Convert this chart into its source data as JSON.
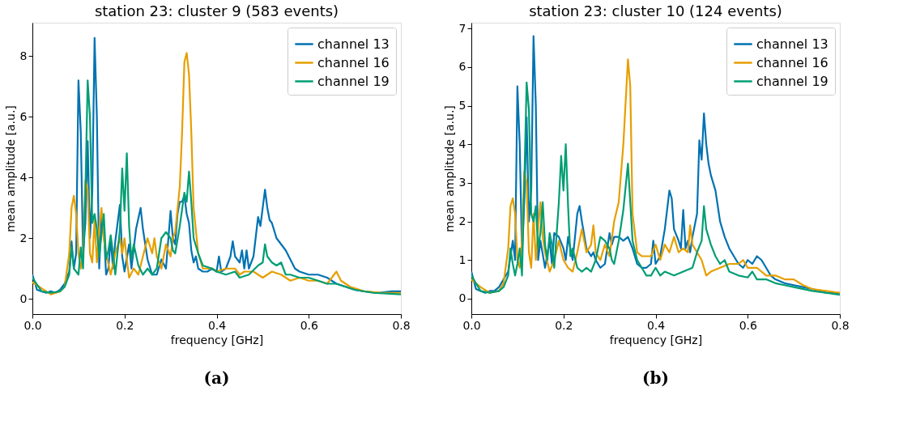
{
  "chart_data": [
    {
      "type": "line",
      "title": "station 23: cluster 9 (583 events)",
      "xlabel": "frequency [GHz]",
      "ylabel": "mean amplitude [a.u.]",
      "annotations": [
        "(a)"
      ],
      "xlim": [
        0,
        0.8
      ],
      "ylim": [
        -0.5,
        9.1
      ],
      "xticks": [
        {
          "value": 0,
          "label": "0.0"
        },
        0.2,
        0.4,
        0.6,
        0.8
      ],
      "yticks": [
        0,
        2,
        4,
        6,
        8
      ],
      "grid": false,
      "legend": "top right",
      "marker": "none",
      "line_style": "solid",
      "series": [
        {
          "name": "channel 13",
          "color": "#0072b2",
          "x": [
            0,
            0.01,
            0.02,
            0.03,
            0.04,
            0.05,
            0.06,
            0.07,
            0.08,
            0.085,
            0.09,
            0.095,
            0.1,
            0.105,
            0.11,
            0.115,
            0.12,
            0.125,
            0.13,
            0.135,
            0.14,
            0.145,
            0.15,
            0.155,
            0.16,
            0.165,
            0.17,
            0.175,
            0.18,
            0.19,
            0.195,
            0.2,
            0.21,
            0.215,
            0.225,
            0.235,
            0.24,
            0.25,
            0.26,
            0.27,
            0.28,
            0.29,
            0.3,
            0.305,
            0.31,
            0.315,
            0.32,
            0.325,
            0.33,
            0.335,
            0.34,
            0.345,
            0.35,
            0.355,
            0.36,
            0.37,
            0.38,
            0.39,
            0.4,
            0.405,
            0.41,
            0.42,
            0.43,
            0.435,
            0.44,
            0.45,
            0.455,
            0.46,
            0.465,
            0.47,
            0.48,
            0.49,
            0.495,
            0.5,
            0.505,
            0.51,
            0.515,
            0.52,
            0.53,
            0.54,
            0.55,
            0.56,
            0.57,
            0.58,
            0.6,
            0.62,
            0.64,
            0.66,
            0.68,
            0.7,
            0.72,
            0.75,
            0.78,
            0.8
          ],
          "values": [
            0.8,
            0.3,
            0.25,
            0.2,
            0.25,
            0.2,
            0.3,
            0.5,
            0.9,
            1.9,
            1.0,
            1.5,
            7.2,
            5.5,
            1.5,
            2.5,
            5.2,
            2.0,
            3.5,
            8.6,
            6.0,
            1.0,
            2.7,
            2.3,
            0.8,
            1.0,
            2.0,
            1.0,
            1.9,
            3.1,
            1.4,
            0.9,
            1.8,
            1.0,
            2.3,
            3.0,
            2.3,
            1.3,
            0.8,
            0.8,
            1.3,
            1.0,
            2.9,
            2.0,
            1.8,
            2.8,
            3.2,
            3.2,
            3.4,
            2.8,
            2.5,
            1.6,
            1.2,
            1.4,
            1.0,
            0.9,
            0.9,
            1.0,
            0.9,
            1.4,
            0.9,
            1.0,
            1.4,
            1.9,
            1.4,
            1.2,
            1.6,
            1.0,
            1.6,
            1.0,
            1.4,
            2.7,
            2.4,
            3.0,
            3.6,
            3.0,
            2.6,
            2.5,
            2.0,
            1.8,
            1.6,
            1.3,
            1.0,
            0.9,
            0.8,
            0.8,
            0.7,
            0.5,
            0.4,
            0.3,
            0.25,
            0.2,
            0.25,
            0.25
          ]
        },
        {
          "name": "channel 16",
          "color": "#e69f00",
          "x": [
            0,
            0.02,
            0.04,
            0.06,
            0.07,
            0.08,
            0.085,
            0.09,
            0.095,
            0.1,
            0.105,
            0.11,
            0.115,
            0.12,
            0.125,
            0.13,
            0.135,
            0.14,
            0.145,
            0.15,
            0.155,
            0.16,
            0.17,
            0.18,
            0.19,
            0.195,
            0.2,
            0.205,
            0.21,
            0.22,
            0.23,
            0.24,
            0.25,
            0.26,
            0.265,
            0.27,
            0.28,
            0.29,
            0.3,
            0.305,
            0.31,
            0.32,
            0.325,
            0.33,
            0.335,
            0.34,
            0.345,
            0.35,
            0.36,
            0.37,
            0.39,
            0.4,
            0.42,
            0.44,
            0.45,
            0.46,
            0.48,
            0.5,
            0.52,
            0.54,
            0.56,
            0.58,
            0.6,
            0.62,
            0.64,
            0.66,
            0.67,
            0.69,
            0.72,
            0.76,
            0.8
          ],
          "values": [
            0.55,
            0.35,
            0.15,
            0.25,
            0.4,
            1.5,
            3.0,
            3.4,
            2.8,
            1.5,
            1.0,
            1.5,
            3.9,
            3.6,
            1.5,
            1.2,
            2.6,
            1.2,
            2.3,
            3.0,
            2.0,
            1.5,
            0.8,
            1.5,
            2.0,
            1.5,
            2.0,
            1.3,
            0.7,
            1.0,
            0.8,
            1.4,
            2.0,
            1.5,
            2.0,
            1.4,
            1.0,
            1.8,
            1.4,
            2.0,
            2.2,
            3.7,
            5.5,
            7.8,
            8.1,
            7.4,
            5.5,
            3.0,
            1.5,
            1.0,
            1.0,
            0.9,
            1.0,
            1.0,
            0.8,
            0.9,
            0.9,
            0.7,
            0.9,
            0.8,
            0.6,
            0.7,
            0.6,
            0.6,
            0.5,
            0.9,
            0.6,
            0.4,
            0.25,
            0.2,
            0.2
          ]
        },
        {
          "name": "channel 19",
          "color": "#009e73",
          "x": [
            0,
            0.02,
            0.04,
            0.06,
            0.07,
            0.08,
            0.085,
            0.09,
            0.095,
            0.1,
            0.105,
            0.11,
            0.115,
            0.12,
            0.125,
            0.13,
            0.135,
            0.14,
            0.145,
            0.15,
            0.155,
            0.16,
            0.165,
            0.17,
            0.175,
            0.18,
            0.19,
            0.195,
            0.2,
            0.205,
            0.21,
            0.215,
            0.22,
            0.23,
            0.24,
            0.25,
            0.26,
            0.27,
            0.28,
            0.29,
            0.3,
            0.305,
            0.31,
            0.32,
            0.33,
            0.335,
            0.34,
            0.345,
            0.35,
            0.36,
            0.37,
            0.39,
            0.4,
            0.42,
            0.44,
            0.45,
            0.47,
            0.49,
            0.5,
            0.505,
            0.51,
            0.52,
            0.53,
            0.54,
            0.55,
            0.56,
            0.58,
            0.6,
            0.62,
            0.64,
            0.66,
            0.68,
            0.7,
            0.74,
            0.8
          ],
          "values": [
            0.7,
            0.25,
            0.2,
            0.25,
            0.4,
            0.8,
            1.7,
            1.0,
            0.9,
            0.8,
            1.7,
            1.0,
            3.5,
            7.2,
            6.0,
            2.5,
            2.8,
            2.3,
            1.4,
            2.1,
            2.8,
            1.3,
            1.6,
            2.1,
            1.5,
            0.8,
            2.3,
            4.3,
            2.9,
            4.8,
            2.4,
            1.3,
            1.8,
            1.1,
            0.8,
            1.0,
            0.8,
            1.0,
            2.0,
            2.2,
            2.0,
            1.6,
            1.5,
            2.4,
            3.5,
            3.2,
            4.2,
            3.2,
            2.0,
            1.5,
            1.1,
            1.0,
            0.9,
            0.8,
            0.9,
            0.7,
            0.8,
            1.1,
            1.2,
            1.8,
            1.4,
            1.2,
            1.1,
            1.2,
            0.8,
            0.8,
            0.7,
            0.7,
            0.6,
            0.5,
            0.5,
            0.4,
            0.3,
            0.2,
            0.15
          ]
        }
      ]
    },
    {
      "type": "line",
      "title": "station 23: cluster 10 (124 events)",
      "xlabel": "frequency [GHz]",
      "ylabel": "mean amplitude [a.u.]",
      "annotations": [
        "(b)"
      ],
      "xlim": [
        0,
        0.8
      ],
      "ylim": [
        -0.4,
        7.15
      ],
      "xticks": [
        {
          "value": 0,
          "label": "0.0"
        },
        0.2,
        0.4,
        0.6,
        0.8
      ],
      "yticks": [
        0,
        1,
        2,
        3,
        4,
        5,
        6,
        7
      ],
      "grid": false,
      "legend": "top right",
      "marker": "none",
      "line_style": "solid",
      "series": [
        {
          "name": "channel 13",
          "color": "#0072b2",
          "x": [
            0,
            0.01,
            0.02,
            0.03,
            0.04,
            0.05,
            0.06,
            0.07,
            0.08,
            0.09,
            0.095,
            0.1,
            0.105,
            0.11,
            0.115,
            0.12,
            0.125,
            0.13,
            0.135,
            0.14,
            0.145,
            0.15,
            0.16,
            0.17,
            0.175,
            0.18,
            0.19,
            0.2,
            0.205,
            0.21,
            0.22,
            0.23,
            0.235,
            0.24,
            0.25,
            0.26,
            0.265,
            0.27,
            0.28,
            0.29,
            0.3,
            0.305,
            0.31,
            0.32,
            0.33,
            0.34,
            0.35,
            0.36,
            0.37,
            0.38,
            0.39,
            0.395,
            0.4,
            0.41,
            0.42,
            0.43,
            0.435,
            0.44,
            0.45,
            0.455,
            0.46,
            0.465,
            0.47,
            0.475,
            0.48,
            0.49,
            0.495,
            0.5,
            0.505,
            0.51,
            0.515,
            0.52,
            0.53,
            0.54,
            0.55,
            0.56,
            0.57,
            0.58,
            0.59,
            0.6,
            0.61,
            0.62,
            0.63,
            0.64,
            0.65,
            0.66,
            0.68,
            0.7,
            0.72,
            0.74,
            0.77,
            0.8
          ],
          "values": [
            0.7,
            0.25,
            0.2,
            0.15,
            0.2,
            0.2,
            0.3,
            0.5,
            0.7,
            1.5,
            1.0,
            5.5,
            4.0,
            1.2,
            2.5,
            4.7,
            2.0,
            2.8,
            6.8,
            5.0,
            1.0,
            1.5,
            0.8,
            1.5,
            0.9,
            1.7,
            1.6,
            1.3,
            1.0,
            1.6,
            1.0,
            2.2,
            2.4,
            2.0,
            1.3,
            1.1,
            1.2,
            1.0,
            0.8,
            0.9,
            1.7,
            1.4,
            1.6,
            1.6,
            1.5,
            1.6,
            1.3,
            0.9,
            0.8,
            0.8,
            0.9,
            1.5,
            0.9,
            1.1,
            1.8,
            2.8,
            2.6,
            1.8,
            1.5,
            1.3,
            2.3,
            1.3,
            1.5,
            1.2,
            1.6,
            2.2,
            4.1,
            3.6,
            4.8,
            4.0,
            3.5,
            3.2,
            2.8,
            2.0,
            1.6,
            1.3,
            1.1,
            0.9,
            0.8,
            1.0,
            0.9,
            1.1,
            1.0,
            0.8,
            0.6,
            0.5,
            0.4,
            0.35,
            0.3,
            0.25,
            0.15,
            0.15
          ]
        },
        {
          "name": "channel 16",
          "color": "#e69f00",
          "x": [
            0,
            0.02,
            0.04,
            0.06,
            0.07,
            0.08,
            0.085,
            0.09,
            0.095,
            0.1,
            0.105,
            0.11,
            0.115,
            0.12,
            0.125,
            0.13,
            0.135,
            0.14,
            0.145,
            0.15,
            0.155,
            0.16,
            0.17,
            0.18,
            0.19,
            0.2,
            0.21,
            0.22,
            0.23,
            0.24,
            0.25,
            0.26,
            0.265,
            0.27,
            0.28,
            0.29,
            0.3,
            0.31,
            0.32,
            0.33,
            0.34,
            0.345,
            0.35,
            0.36,
            0.37,
            0.38,
            0.39,
            0.4,
            0.41,
            0.42,
            0.43,
            0.44,
            0.45,
            0.46,
            0.47,
            0.475,
            0.48,
            0.49,
            0.5,
            0.51,
            0.52,
            0.54,
            0.56,
            0.58,
            0.59,
            0.6,
            0.62,
            0.64,
            0.66,
            0.68,
            0.7,
            0.72,
            0.74,
            0.77,
            0.8
          ],
          "values": [
            0.5,
            0.3,
            0.15,
            0.2,
            0.4,
            1.3,
            2.4,
            2.6,
            2.2,
            1.0,
            0.8,
            1.5,
            3.3,
            3.0,
            1.2,
            0.8,
            2.2,
            1.0,
            1.8,
            2.5,
            1.6,
            1.2,
            0.7,
            1.0,
            1.5,
            1.0,
            0.8,
            0.7,
            1.2,
            1.8,
            1.2,
            1.4,
            1.9,
            1.2,
            1.0,
            1.4,
            1.1,
            2.0,
            2.5,
            4.0,
            6.2,
            5.5,
            2.2,
            1.2,
            1.1,
            1.1,
            1.1,
            1.4,
            1.0,
            1.4,
            1.2,
            1.6,
            1.2,
            1.3,
            1.2,
            1.9,
            1.4,
            1.2,
            1.0,
            0.6,
            0.7,
            0.8,
            0.9,
            0.9,
            1.0,
            0.8,
            0.8,
            0.6,
            0.6,
            0.5,
            0.5,
            0.35,
            0.25,
            0.2,
            0.15
          ]
        },
        {
          "name": "channel 19",
          "color": "#009e73",
          "x": [
            0,
            0.02,
            0.04,
            0.06,
            0.07,
            0.08,
            0.085,
            0.09,
            0.095,
            0.1,
            0.105,
            0.11,
            0.115,
            0.12,
            0.125,
            0.13,
            0.135,
            0.14,
            0.145,
            0.15,
            0.155,
            0.16,
            0.165,
            0.17,
            0.175,
            0.18,
            0.19,
            0.195,
            0.2,
            0.205,
            0.21,
            0.215,
            0.22,
            0.23,
            0.24,
            0.25,
            0.26,
            0.27,
            0.28,
            0.29,
            0.3,
            0.305,
            0.31,
            0.32,
            0.33,
            0.34,
            0.345,
            0.35,
            0.36,
            0.37,
            0.38,
            0.39,
            0.4,
            0.41,
            0.42,
            0.44,
            0.46,
            0.48,
            0.49,
            0.5,
            0.505,
            0.51,
            0.52,
            0.53,
            0.54,
            0.55,
            0.56,
            0.58,
            0.6,
            0.61,
            0.62,
            0.64,
            0.66,
            0.68,
            0.7,
            0.74,
            0.8
          ],
          "values": [
            0.6,
            0.2,
            0.15,
            0.2,
            0.3,
            0.6,
            1.3,
            0.9,
            0.6,
            0.9,
            1.3,
            0.6,
            3.0,
            5.6,
            4.9,
            2.2,
            2.0,
            2.4,
            1.3,
            1.7,
            2.5,
            1.4,
            1.0,
            1.7,
            1.4,
            0.8,
            2.5,
            3.7,
            2.8,
            4.0,
            2.4,
            1.1,
            1.3,
            0.8,
            0.7,
            0.8,
            0.7,
            1.0,
            1.6,
            1.5,
            1.3,
            1.0,
            0.9,
            1.5,
            2.3,
            3.5,
            2.5,
            1.5,
            1.0,
            0.8,
            0.6,
            0.6,
            0.8,
            0.6,
            0.7,
            0.6,
            0.7,
            0.8,
            1.2,
            1.5,
            2.4,
            1.8,
            1.4,
            1.1,
            0.9,
            1.0,
            0.7,
            0.6,
            0.55,
            0.7,
            0.5,
            0.5,
            0.4,
            0.35,
            0.3,
            0.2,
            0.1
          ]
        }
      ]
    }
  ]
}
